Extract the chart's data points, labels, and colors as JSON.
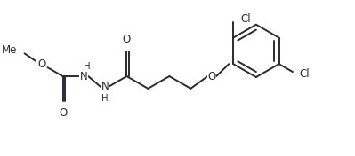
{
  "bg_color": "#ffffff",
  "line_color": "#2a2a35",
  "line_width": 1.4,
  "font_size": 8.5,
  "figsize": [
    3.99,
    1.76
  ],
  "dpi": 100,
  "xlim": [
    0,
    399
  ],
  "ylim": [
    0,
    176
  ]
}
